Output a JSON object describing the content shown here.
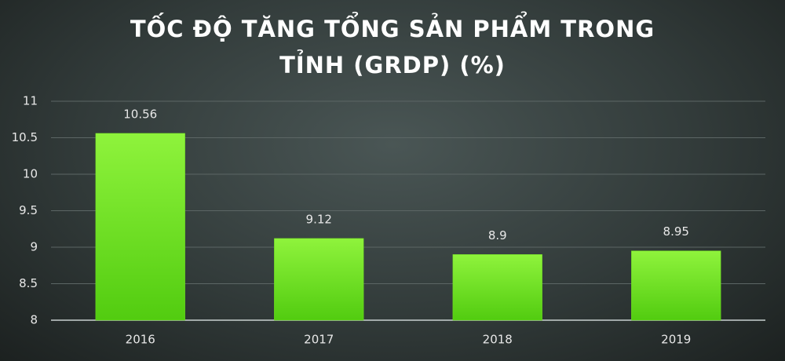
{
  "chart_data": {
    "type": "bar",
    "title": "TỐC ĐỘ TĂNG TỔNG SẢN PHẨM TRONG TỈNH (GRDP) (%)",
    "categories": [
      "2016",
      "2017",
      "2018",
      "2019"
    ],
    "values": [
      10.56,
      9.12,
      8.9,
      8.95
    ],
    "color": "#6fe020",
    "ylim": [
      8,
      11
    ],
    "yticks": [
      8,
      8.5,
      9,
      9.5,
      10,
      10.5,
      11
    ],
    "grid": true
  }
}
